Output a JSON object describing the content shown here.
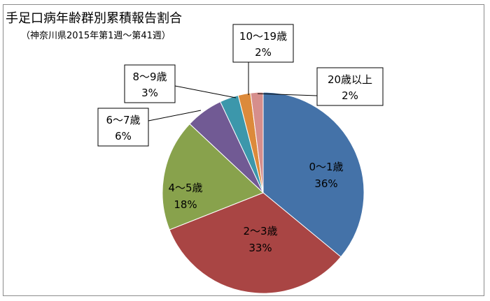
{
  "chart_data": {
    "type": "pie",
    "title": "手足口病年齢群別累積報告割合",
    "subtitle": "（神奈川県2015年第1週〜第41週）",
    "slices": [
      {
        "label": "0〜1歳",
        "pct_label": "36%",
        "value": 36,
        "color": "#4472a8"
      },
      {
        "label": "2〜3歳",
        "pct_label": "33%",
        "value": 33,
        "color": "#a94544"
      },
      {
        "label": "4〜5歳",
        "pct_label": "18%",
        "value": 18,
        "color": "#88a24c"
      },
      {
        "label": "6〜7歳",
        "pct_label": "6%",
        "value": 6,
        "color": "#715a94"
      },
      {
        "label": "8〜9歳",
        "pct_label": "3%",
        "value": 3,
        "color": "#3c97ab"
      },
      {
        "label": "10〜19歳",
        "pct_label": "2%",
        "value": 2,
        "color": "#dc8a3b"
      },
      {
        "label": "20歳以上",
        "pct_label": "2%",
        "value": 2,
        "color": "#d68e8c"
      }
    ]
  }
}
